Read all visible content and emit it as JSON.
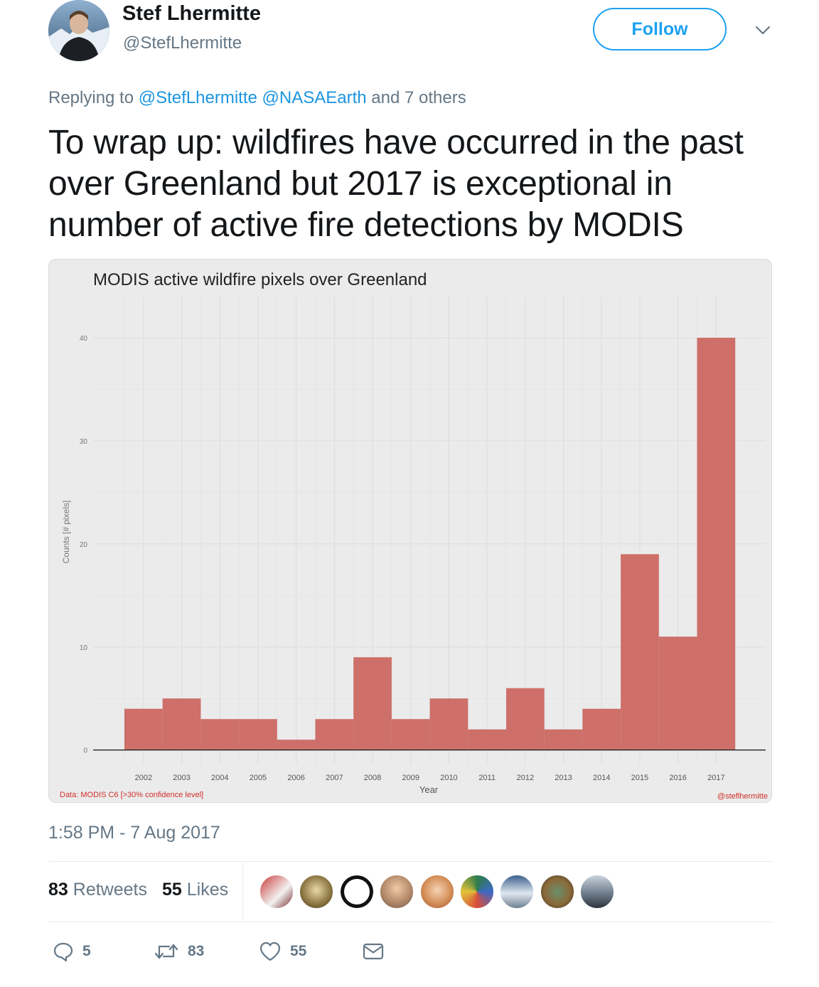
{
  "author": {
    "name": "Stef Lhermitte",
    "handle": "@StefLhermitte",
    "follow_label": "Follow"
  },
  "reply": {
    "prefix": "Replying to",
    "mention1": "@StefLhermitte",
    "mention2": "@NASAEarth",
    "suffix": "and 7 others"
  },
  "tweet_text": "To wrap up: wildfires have occurred in the past over Greenland but 2017 is exceptional in number of active fire detections by MODIS",
  "chart_data": {
    "type": "bar",
    "title": "MODIS active wildfire pixels over Greenland",
    "xlabel": "Year",
    "ylabel": "Counts [# pixels]",
    "categories": [
      "2002",
      "2003",
      "2004",
      "2005",
      "2006",
      "2007",
      "2008",
      "2009",
      "2010",
      "2011",
      "2012",
      "2013",
      "2014",
      "2015",
      "2016",
      "2017"
    ],
    "values": [
      4,
      5,
      3,
      3,
      1,
      3,
      9,
      3,
      5,
      2,
      6,
      2,
      4,
      19,
      11,
      40
    ],
    "ylim": [
      -1.4,
      44
    ],
    "yticks": [
      0,
      10,
      20,
      30,
      40
    ],
    "grid": true,
    "bar_color": "#cc6862",
    "source_note": "Data: MODIS C6 [>30% confidence level]",
    "credit": "@steflhermitte"
  },
  "timestamp": "1:58 PM - 7 Aug 2017",
  "stats": {
    "retweets_count": "83",
    "retweets_label": "Retweets",
    "likes_count": "55",
    "likes_label": "Likes"
  },
  "actions": {
    "reply_count": "5",
    "retweet_count": "83",
    "like_count": "55"
  },
  "colors": {
    "accent": "#1da1f2",
    "link": "#1b95e0",
    "muted": "#657786"
  }
}
